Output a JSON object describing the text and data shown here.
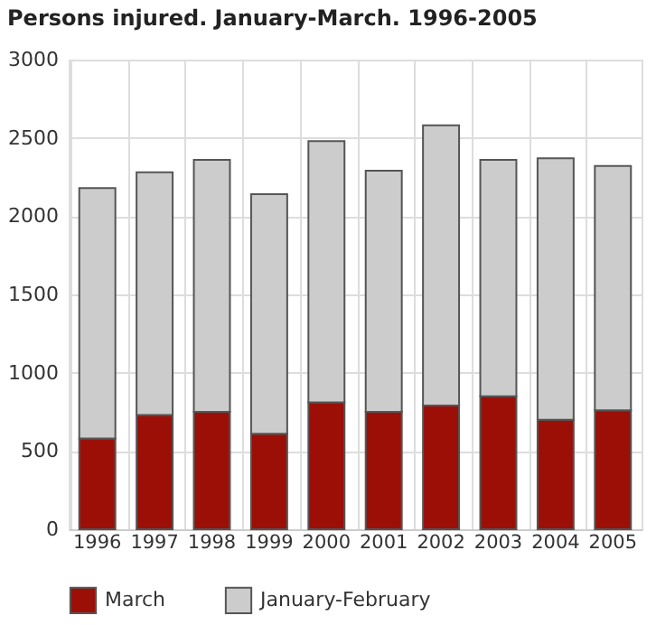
{
  "chart_data": {
    "type": "bar",
    "title": "Persons injured. January-March. 1996-2005",
    "categories": [
      "1996",
      "1997",
      "1998",
      "1999",
      "2000",
      "2001",
      "2002",
      "2003",
      "2004",
      "2005"
    ],
    "stacked": true,
    "series": [
      {
        "name": "March",
        "color": "#9b0f07",
        "values": [
          580,
          730,
          750,
          610,
          810,
          750,
          790,
          850,
          700,
          760
        ]
      },
      {
        "name": "January-February",
        "color": "#cccccc",
        "values": [
          1600,
          1550,
          1610,
          1530,
          1670,
          1540,
          1790,
          1510,
          1670,
          1560
        ]
      }
    ],
    "ylim": [
      0,
      3000
    ],
    "yticks": [
      0,
      500,
      1000,
      1500,
      2000,
      2500,
      3000
    ],
    "grid": true,
    "legend": "bottom"
  }
}
